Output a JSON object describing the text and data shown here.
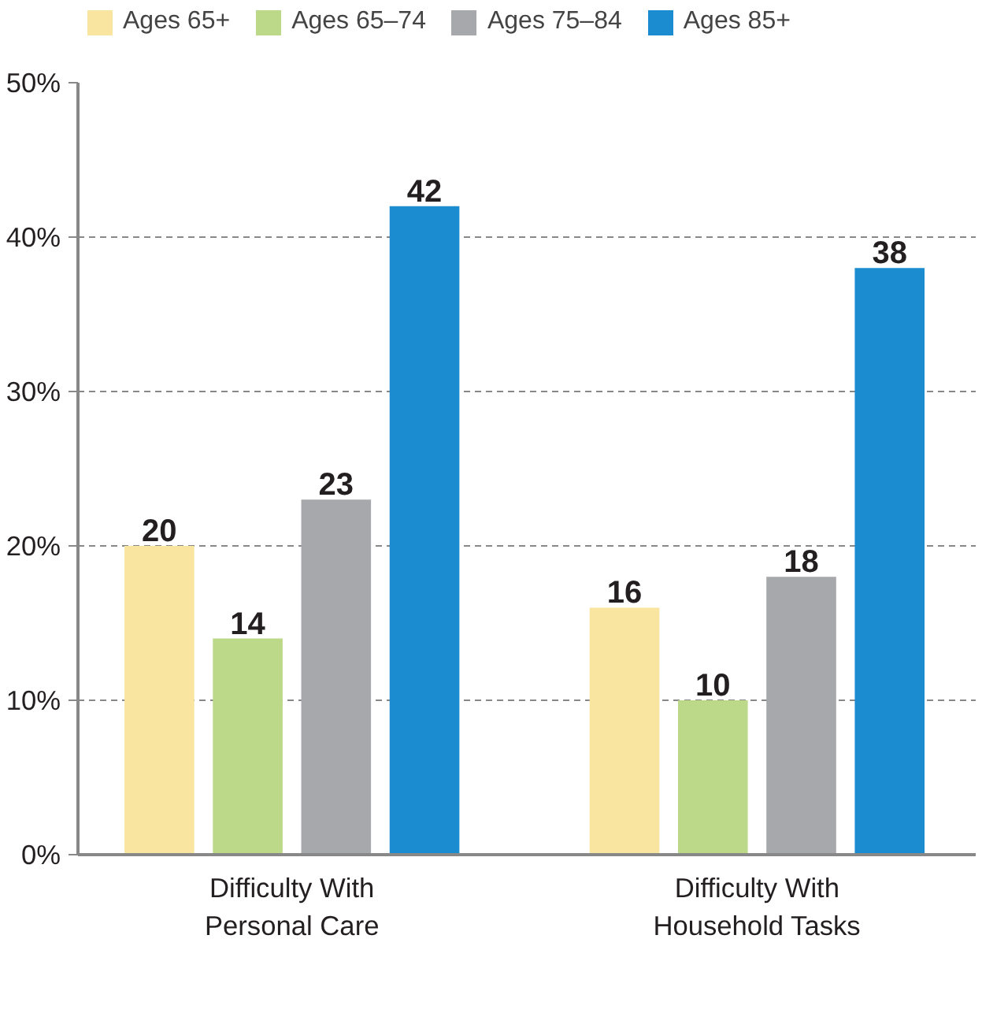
{
  "chart_data": {
    "type": "bar",
    "categories": [
      "Difficulty With\nPersonal Care",
      "Difficulty With\nHousehold Tasks"
    ],
    "series": [
      {
        "name": "Ages 65+",
        "color": "#f9e4a0",
        "values": [
          20,
          16
        ]
      },
      {
        "name": "Ages 65–74",
        "color": "#bcd98a",
        "values": [
          14,
          10
        ]
      },
      {
        "name": "Ages 75–84",
        "color": "#a7a8ab",
        "values": [
          23,
          18
        ]
      },
      {
        "name": "Ages 85+",
        "color": "#1a8ccf",
        "values": [
          42,
          38
        ]
      }
    ],
    "ylim": [
      0,
      50
    ],
    "yticks": [
      {
        "value": 0,
        "label": "0%"
      },
      {
        "value": 10,
        "label": "10%"
      },
      {
        "value": 20,
        "label": "20%"
      },
      {
        "value": 30,
        "label": "30%"
      },
      {
        "value": 40,
        "label": "40%"
      },
      {
        "value": 50,
        "label": "50%"
      }
    ],
    "grid": "y",
    "legend": "top left",
    "data_labels": true
  }
}
